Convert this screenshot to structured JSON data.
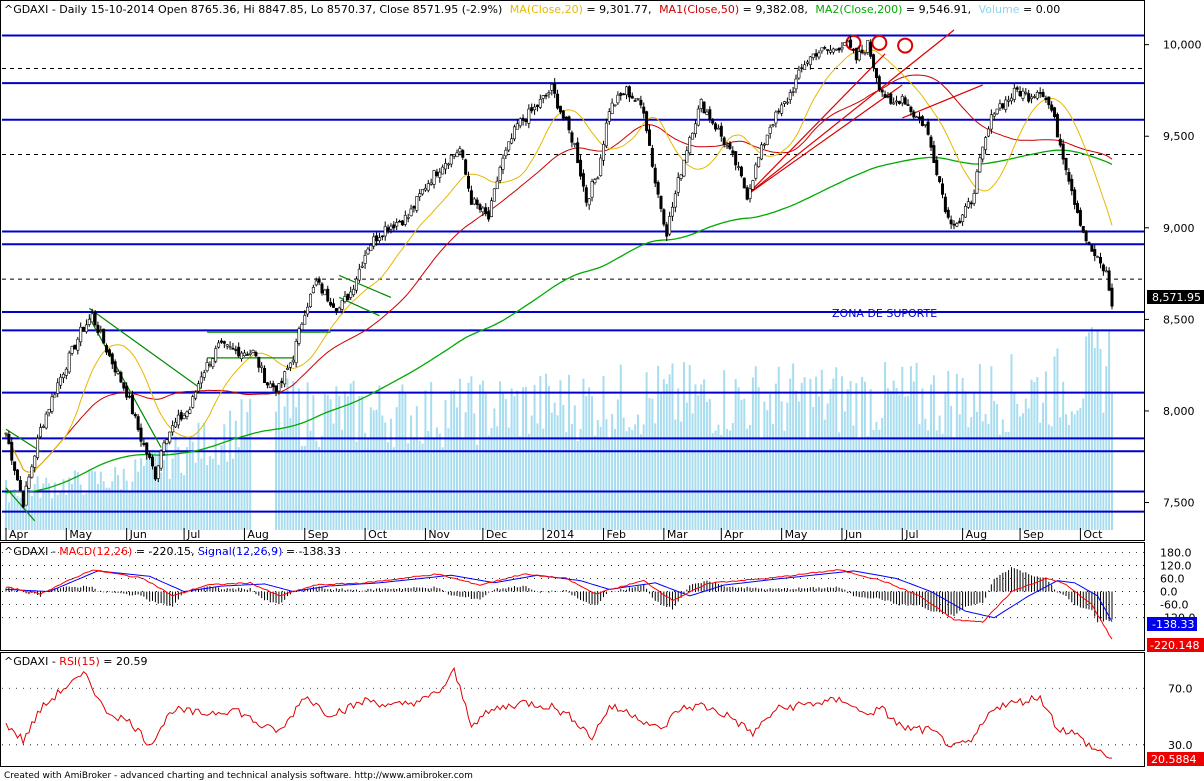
{
  "header": {
    "symbol": "^GDAXI",
    "summary": "^GDAXI - Daily 15-10-2014 Open 8765.36, Hi 8847.85, Lo 8570.37, Close 8571.95 (-2.9%)",
    "ma20_label": "MA(Close,20)",
    "ma20_value": " = 9,301.77,",
    "ma50_label": "MA1(Close,50)",
    "ma50_value": " = 9,382.08,",
    "ma200_label": "MA2(Close,200)",
    "ma200_value": " = 9,546.91,",
    "volume_label": "Volume",
    "volume_value": " = 0.00"
  },
  "macd_header": {
    "prefix": "^GDAXI - ",
    "macd_label": "MACD(12,26)",
    "macd_value": " = -220.15, ",
    "signal_label": "Signal(12,26,9)",
    "signal_value": " = -138.33"
  },
  "rsi_header": {
    "prefix": "^GDAXI - ",
    "rsi_label": "RSI(15)",
    "rsi_value": " = 20.59"
  },
  "annotation": "ZONA DE SUPORTE",
  "footer": "Created with AmiBroker - advanced charting and technical analysis software. http://www.amibroker.com",
  "colors": {
    "ma20": "#e6b800",
    "ma50": "#cc0000",
    "ma200": "#00aa00",
    "volume": "#a8ddf0",
    "macd": "#ff0000",
    "signal": "#0000ff",
    "rsi": "#dd0000",
    "support": "#0000cc",
    "trend_green": "#008800",
    "trend_red": "#dd0000"
  },
  "chart_data": [
    {
      "type": "candlestick",
      "pane": "price",
      "ylim": [
        7350,
        10080
      ],
      "y_ticks": [
        "10,000",
        "9,500",
        "9,000",
        "8,500",
        "8,000",
        "7,500"
      ],
      "y_tick_values": [
        10000,
        9500,
        9000,
        8500,
        8000,
        7500
      ],
      "last_price_label": "8,571.95",
      "x_labels": [
        "Apr",
        "May",
        "Jun",
        "Jul",
        "Aug",
        "Sep",
        "Oct",
        "Nov",
        "Dec",
        "2014",
        "Feb",
        "Mar",
        "Apr",
        "May",
        "Jun",
        "Jul",
        "Aug",
        "Sep",
        "Oct"
      ],
      "keypoints": [
        [
          0,
          7880
        ],
        [
          6,
          7500
        ],
        [
          12,
          7900
        ],
        [
          18,
          8150
        ],
        [
          26,
          8430
        ],
        [
          30,
          8520
        ],
        [
          36,
          8300
        ],
        [
          42,
          8100
        ],
        [
          47,
          7850
        ],
        [
          52,
          7650
        ],
        [
          55,
          7850
        ],
        [
          60,
          7950
        ],
        [
          64,
          8010
        ],
        [
          68,
          8200
        ],
        [
          74,
          8350
        ],
        [
          80,
          8330
        ],
        [
          86,
          8320
        ],
        [
          91,
          8150
        ],
        [
          95,
          8120
        ],
        [
          100,
          8300
        ],
        [
          104,
          8550
        ],
        [
          108,
          8700
        ],
        [
          112,
          8620
        ],
        [
          116,
          8560
        ],
        [
          120,
          8650
        ],
        [
          126,
          8900
        ],
        [
          132,
          9000
        ],
        [
          140,
          9060
        ],
        [
          146,
          9230
        ],
        [
          152,
          9350
        ],
        [
          158,
          9430
        ],
        [
          162,
          9150
        ],
        [
          168,
          9050
        ],
        [
          172,
          9330
        ],
        [
          178,
          9560
        ],
        [
          184,
          9650
        ],
        [
          190,
          9760
        ],
        [
          194,
          9600
        ],
        [
          198,
          9450
        ],
        [
          202,
          9150
        ],
        [
          206,
          9300
        ],
        [
          210,
          9650
        ],
        [
          216,
          9750
        ],
        [
          222,
          9650
        ],
        [
          226,
          9250
        ],
        [
          230,
          8980
        ],
        [
          234,
          9250
        ],
        [
          238,
          9500
        ],
        [
          242,
          9680
        ],
        [
          248,
          9530
        ],
        [
          254,
          9350
        ],
        [
          258,
          9180
        ],
        [
          262,
          9380
        ],
        [
          266,
          9560
        ],
        [
          272,
          9700
        ],
        [
          278,
          9900
        ],
        [
          282,
          9960
        ],
        [
          288,
          9970
        ],
        [
          292,
          10020
        ],
        [
          296,
          9920
        ],
        [
          300,
          10000
        ],
        [
          304,
          9780
        ],
        [
          308,
          9660
        ],
        [
          312,
          9720
        ],
        [
          316,
          9620
        ],
        [
          320,
          9560
        ],
        [
          324,
          9320
        ],
        [
          328,
          9050
        ],
        [
          332,
          9030
        ],
        [
          336,
          9150
        ],
        [
          340,
          9420
        ],
        [
          344,
          9650
        ],
        [
          348,
          9690
        ],
        [
          352,
          9750
        ],
        [
          356,
          9720
        ],
        [
          360,
          9760
        ],
        [
          364,
          9640
        ],
        [
          368,
          9400
        ],
        [
          372,
          9150
        ],
        [
          375,
          8980
        ],
        [
          377,
          8900
        ],
        [
          380,
          8820
        ],
        [
          383,
          8750
        ],
        [
          385,
          8572
        ]
      ],
      "volume_keypoints": [
        [
          0,
          0.15
        ],
        [
          40,
          0.2
        ],
        [
          95,
          0.45
        ],
        [
          150,
          0.45
        ],
        [
          220,
          0.5
        ],
        [
          280,
          0.5
        ],
        [
          330,
          0.5
        ],
        [
          370,
          0.55
        ],
        [
          385,
          0.65
        ]
      ],
      "support_lines": [
        10050,
        9790,
        9590,
        8980,
        8910,
        8540,
        8440,
        8100,
        7850,
        7780,
        7560,
        7450
      ],
      "dashed_levels": [
        9870,
        9400,
        8720
      ],
      "annotation_price": 8520
    },
    {
      "type": "line",
      "pane": "macd",
      "ylim": [
        -250,
        200
      ],
      "y_ticks": [
        "180.0",
        "120.0",
        "60.0",
        "0.0",
        "-60.0",
        "-120.0"
      ],
      "y_tick_values": [
        180,
        120,
        60,
        0,
        -60,
        -120
      ],
      "last_labels": [
        "-138.33",
        "-220.148"
      ],
      "series": [
        {
          "name": "MACD(12,26)",
          "keypoints": [
            [
              0,
              20
            ],
            [
              12,
              -10
            ],
            [
              30,
              100
            ],
            [
              48,
              60
            ],
            [
              58,
              -20
            ],
            [
              70,
              30
            ],
            [
              85,
              40
            ],
            [
              95,
              -20
            ],
            [
              108,
              30
            ],
            [
              125,
              40
            ],
            [
              150,
              80
            ],
            [
              165,
              30
            ],
            [
              180,
              80
            ],
            [
              195,
              60
            ],
            [
              205,
              -10
            ],
            [
              222,
              50
            ],
            [
              232,
              -40
            ],
            [
              245,
              40
            ],
            [
              265,
              60
            ],
            [
              290,
              100
            ],
            [
              305,
              50
            ],
            [
              318,
              -20
            ],
            [
              330,
              -130
            ],
            [
              340,
              -140
            ],
            [
              350,
              0
            ],
            [
              362,
              60
            ],
            [
              368,
              40
            ],
            [
              378,
              -60
            ],
            [
              385,
              -220
            ]
          ]
        },
        {
          "name": "Signal(12,26,9)",
          "keypoints": [
            [
              0,
              10
            ],
            [
              15,
              0
            ],
            [
              32,
              95
            ],
            [
              50,
              70
            ],
            [
              62,
              0
            ],
            [
              75,
              25
            ],
            [
              90,
              35
            ],
            [
              100,
              0
            ],
            [
              112,
              25
            ],
            [
              130,
              40
            ],
            [
              155,
              75
            ],
            [
              170,
              40
            ],
            [
              185,
              75
            ],
            [
              200,
              50
            ],
            [
              210,
              10
            ],
            [
              226,
              40
            ],
            [
              238,
              -20
            ],
            [
              250,
              30
            ],
            [
              270,
              60
            ],
            [
              295,
              95
            ],
            [
              310,
              60
            ],
            [
              322,
              0
            ],
            [
              334,
              -90
            ],
            [
              344,
              -120
            ],
            [
              356,
              -20
            ],
            [
              366,
              50
            ],
            [
              372,
              40
            ],
            [
              380,
              -20
            ],
            [
              385,
              -138
            ]
          ]
        }
      ]
    },
    {
      "type": "line",
      "pane": "rsi",
      "ylim": [
        15,
        90
      ],
      "y_ticks": [
        "70.0",
        "30.0"
      ],
      "y_tick_values": [
        70,
        30
      ],
      "last_label": "20.5884",
      "series": [
        {
          "name": "RSI(15)",
          "keypoints": [
            [
              0,
              45
            ],
            [
              6,
              33
            ],
            [
              12,
              55
            ],
            [
              20,
              70
            ],
            [
              28,
              80
            ],
            [
              34,
              55
            ],
            [
              44,
              45
            ],
            [
              50,
              30
            ],
            [
              58,
              55
            ],
            [
              68,
              52
            ],
            [
              80,
              55
            ],
            [
              90,
              42
            ],
            [
              96,
              40
            ],
            [
              104,
              65
            ],
            [
              112,
              52
            ],
            [
              118,
              55
            ],
            [
              126,
              62
            ],
            [
              134,
              57
            ],
            [
              146,
              62
            ],
            [
              152,
              70
            ],
            [
              156,
              82
            ],
            [
              162,
              45
            ],
            [
              170,
              55
            ],
            [
              180,
              60
            ],
            [
              190,
              57
            ],
            [
              198,
              48
            ],
            [
              204,
              35
            ],
            [
              210,
              57
            ],
            [
              218,
              52
            ],
            [
              228,
              40
            ],
            [
              234,
              55
            ],
            [
              242,
              58
            ],
            [
              252,
              50
            ],
            [
              260,
              38
            ],
            [
              268,
              55
            ],
            [
              276,
              58
            ],
            [
              284,
              60
            ],
            [
              292,
              62
            ],
            [
              298,
              52
            ],
            [
              305,
              55
            ],
            [
              312,
              42
            ],
            [
              322,
              40
            ],
            [
              330,
              28
            ],
            [
              336,
              32
            ],
            [
              344,
              57
            ],
            [
              352,
              60
            ],
            [
              360,
              64
            ],
            [
              366,
              42
            ],
            [
              372,
              38
            ],
            [
              378,
              28
            ],
            [
              385,
              20.59
            ]
          ]
        }
      ]
    }
  ]
}
